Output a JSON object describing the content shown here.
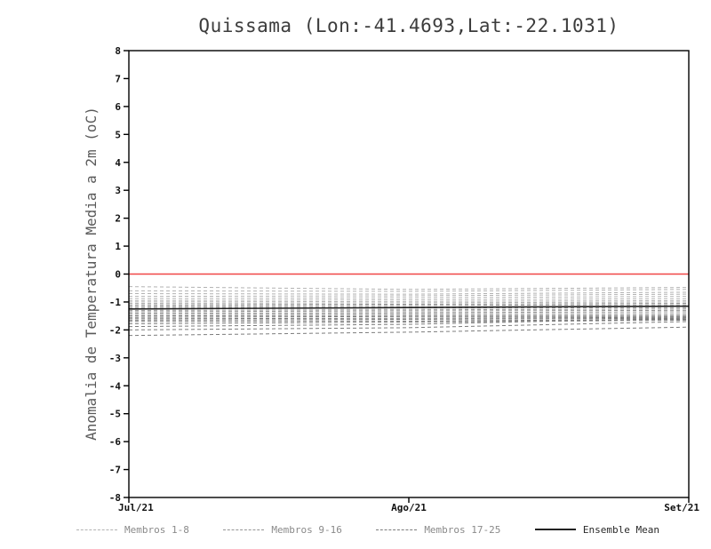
{
  "chart_data": {
    "type": "line",
    "title": "Quissama (Lon:-41.4693,Lat:-22.1031)",
    "ylabel": "Anomalia de Temperatura Media a 2m (oC)",
    "xlabel": "",
    "x_ticklabels": [
      "Jul/21",
      "Ago/21",
      "Set/21"
    ],
    "ylim": [
      -8,
      8
    ],
    "y_tick_step": 1,
    "grid": false,
    "legend_position": "bottom",
    "zero_line": {
      "y": 0,
      "color": "#f04646"
    },
    "frame_color": "#000000",
    "groups": [
      {
        "name": "Membros 1-8",
        "style": "dashed",
        "color": "#b2b2b2",
        "members": [
          [
            -0.45,
            -0.55,
            -0.48
          ],
          [
            -0.6,
            -0.62,
            -0.55
          ],
          [
            -0.7,
            -0.72,
            -0.65
          ],
          [
            -0.8,
            -0.78,
            -0.72
          ],
          [
            -0.88,
            -0.85,
            -0.8
          ],
          [
            -0.95,
            -0.92,
            -0.88
          ],
          [
            -1.0,
            -0.98,
            -0.95
          ],
          [
            -1.05,
            -1.03,
            -1.0
          ]
        ]
      },
      {
        "name": "Membros 9-16",
        "style": "dashed",
        "color": "#969696",
        "members": [
          [
            -1.1,
            -1.08,
            -1.05
          ],
          [
            -1.15,
            -1.12,
            -1.1
          ],
          [
            -1.2,
            -1.18,
            -1.15
          ],
          [
            -1.25,
            -1.22,
            -1.2
          ],
          [
            -1.3,
            -1.28,
            -1.25
          ],
          [
            -1.35,
            -1.32,
            -1.3
          ],
          [
            -1.4,
            -1.38,
            -1.35
          ],
          [
            -1.45,
            -1.42,
            -1.42
          ]
        ]
      },
      {
        "name": "Membros 17-25",
        "style": "dashed",
        "color": "#7c7c7c",
        "members": [
          [
            -1.5,
            -1.48,
            -1.48
          ],
          [
            -1.55,
            -1.52,
            -1.52
          ],
          [
            -1.6,
            -1.58,
            -1.55
          ],
          [
            -1.65,
            -1.62,
            -1.58
          ],
          [
            -1.7,
            -1.68,
            -1.62
          ],
          [
            -1.78,
            -1.72,
            -1.65
          ],
          [
            -1.88,
            -1.8,
            -1.58
          ],
          [
            -2.0,
            -1.92,
            -1.7
          ],
          [
            -2.2,
            -2.08,
            -1.9
          ]
        ]
      }
    ],
    "mean": {
      "name": "Ensemble Mean",
      "style": "solid",
      "color": "#222222",
      "values": [
        -1.25,
        -1.2,
        -1.15
      ]
    }
  }
}
